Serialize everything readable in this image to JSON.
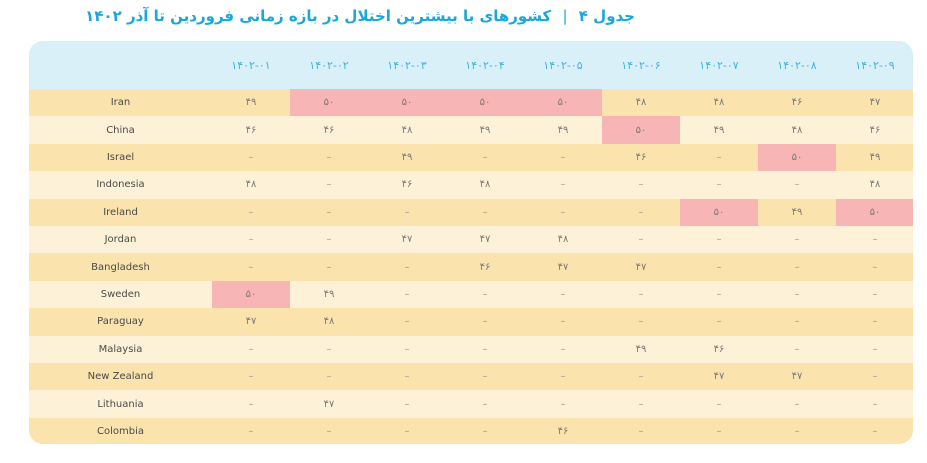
{
  "title": {
    "label": "جدول ۴",
    "separator": "|",
    "text": "کشورهای با بیشترین اختلال در بازه زمانی فروردین تا آذر ۱۴۰۲"
  },
  "colors": {
    "highlight": "#f7b5b5",
    "row_odd": "#fbe3ae",
    "row_even": "#fdf2d7",
    "header_bg": "#d9f0f8",
    "accent": "#1aa7d9"
  },
  "columns": [
    "۱۴۰۲-۰۱",
    "۱۴۰۲-۰۲",
    "۱۴۰۲-۰۳",
    "۱۴۰۲-۰۴",
    "۱۴۰۲-۰۵",
    "۱۴۰۲-۰۶",
    "۱۴۰۲-۰۷",
    "۱۴۰۲-۰۸",
    "۱۴۰۲-۰۹"
  ],
  "rows": [
    {
      "country": "Iran",
      "values": [
        "۴۹",
        "۵۰",
        "۵۰",
        "۵۰",
        "۵۰",
        "۴۸",
        "۴۸",
        "۴۶",
        "۴۷"
      ],
      "highlight": [
        1,
        2,
        3,
        4
      ]
    },
    {
      "country": "China",
      "values": [
        "۴۶",
        "۴۶",
        "۴۸",
        "۴۹",
        "۴۹",
        "۵۰",
        "۴۹",
        "۴۸",
        "۴۶"
      ],
      "highlight": [
        5
      ]
    },
    {
      "country": "Israel",
      "values": [
        "–",
        "–",
        "۴۹",
        "–",
        "–",
        "۴۶",
        "–",
        "۵۰",
        "۴۹"
      ],
      "highlight": [
        7
      ]
    },
    {
      "country": "Indonesia",
      "values": [
        "۴۸",
        "–",
        "۴۶",
        "۴۸",
        "–",
        "–",
        "–",
        "–",
        "۴۸"
      ],
      "highlight": []
    },
    {
      "country": "Ireland",
      "values": [
        "–",
        "–",
        "–",
        "–",
        "–",
        "–",
        "۵۰",
        "۴۹",
        "۵۰"
      ],
      "highlight": [
        6,
        8
      ]
    },
    {
      "country": "Jordan",
      "values": [
        "–",
        "–",
        "۴۷",
        "۴۷",
        "۴۸",
        "–",
        "–",
        "–",
        "–"
      ],
      "highlight": []
    },
    {
      "country": "Bangladesh",
      "values": [
        "–",
        "–",
        "–",
        "۴۶",
        "۴۷",
        "۴۷",
        "–",
        "–",
        "–"
      ],
      "highlight": []
    },
    {
      "country": "Sweden",
      "values": [
        "۵۰",
        "۴۹",
        "–",
        "–",
        "–",
        "–",
        "–",
        "–",
        "–"
      ],
      "highlight": [
        0
      ]
    },
    {
      "country": "Paraguay",
      "values": [
        "۴۷",
        "۴۸",
        "–",
        "–",
        "–",
        "–",
        "–",
        "–",
        "–"
      ],
      "highlight": []
    },
    {
      "country": "Malaysia",
      "values": [
        "–",
        "–",
        "–",
        "–",
        "–",
        "۴۹",
        "۴۶",
        "–",
        "–"
      ],
      "highlight": []
    },
    {
      "country": "New Zealand",
      "values": [
        "–",
        "–",
        "–",
        "–",
        "–",
        "–",
        "۴۷",
        "۴۷",
        "–"
      ],
      "highlight": []
    },
    {
      "country": "Lithuania",
      "values": [
        "–",
        "۴۷",
        "–",
        "–",
        "–",
        "–",
        "–",
        "–",
        "–"
      ],
      "highlight": []
    },
    {
      "country": "Colombia",
      "values": [
        "–",
        "–",
        "–",
        "–",
        "۴۶",
        "–",
        "–",
        "–",
        "–"
      ],
      "highlight": []
    }
  ]
}
